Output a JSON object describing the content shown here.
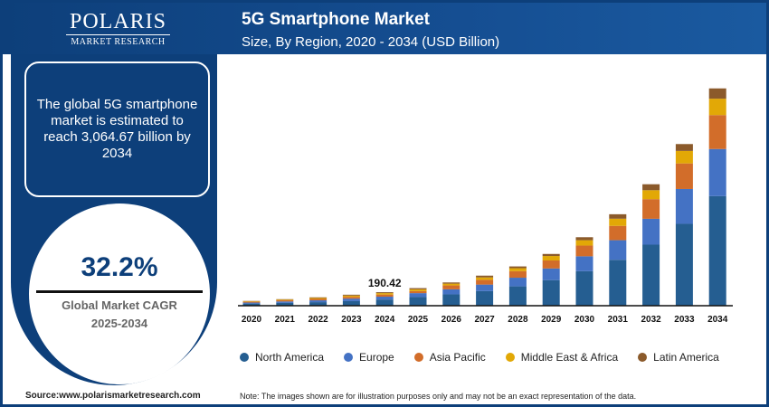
{
  "logo": {
    "brand": "POLARIS",
    "sub": "MARKET RESEARCH"
  },
  "header": {
    "title": "5G Smartphone Market",
    "subtitle": "Size, By Region, 2020 - 2034 (USD Billion)"
  },
  "info": {
    "text": "The global 5G smartphone market is estimated to reach 3,064.67 billion by 2034"
  },
  "cagr": {
    "value": "32.2%",
    "label": "Global Market CAGR",
    "period": "2025-2034"
  },
  "footer": {
    "source": "Source:www.polarismarketresearch.com",
    "note": "Note: The images shown are for illustration purposes only and may not be an exact representation of the data."
  },
  "chart_data": {
    "type": "bar",
    "stacked": true,
    "categories": [
      "2020",
      "2021",
      "2022",
      "2023",
      "2024",
      "2025",
      "2026",
      "2027",
      "2028",
      "2029",
      "2030",
      "2031",
      "2032",
      "2033",
      "2034"
    ],
    "ylim": [
      0,
      3100
    ],
    "grid": false,
    "legend": "bottom",
    "annotations": [
      {
        "category": "2024",
        "text": "190.42"
      }
    ],
    "series": [
      {
        "name": "North America",
        "color": "#255E91",
        "values": [
          30,
          40,
          50,
          65,
          87.2,
          122,
          160,
          206,
          273,
          361,
          487,
          647,
          861,
          1155,
          1546
        ]
      },
      {
        "name": "Europe",
        "color": "#4472C4",
        "values": [
          14,
          20,
          26,
          35,
          40.1,
          55,
          71,
          92,
          122,
          164,
          210,
          277,
          365,
          491,
          664
        ]
      },
      {
        "name": "Asia Pacific",
        "color": "#D26D2A",
        "values": [
          12,
          16,
          20,
          25,
          30,
          29,
          55,
          67,
          92,
          113,
          151,
          202,
          277,
          361,
          479
        ]
      },
      {
        "name": "Middle East & Africa",
        "color": "#E2A806",
        "values": [
          7,
          10,
          13,
          18,
          20,
          25,
          25,
          34,
          42,
          63,
          76,
          101,
          126,
          176,
          231
        ]
      },
      {
        "name": "Latin America",
        "color": "#8B5A2B",
        "values": [
          4,
          6,
          9,
          12,
          13.12,
          17,
          17,
          25,
          25,
          29,
          42,
          63,
          84,
          97,
          145
        ]
      }
    ]
  }
}
